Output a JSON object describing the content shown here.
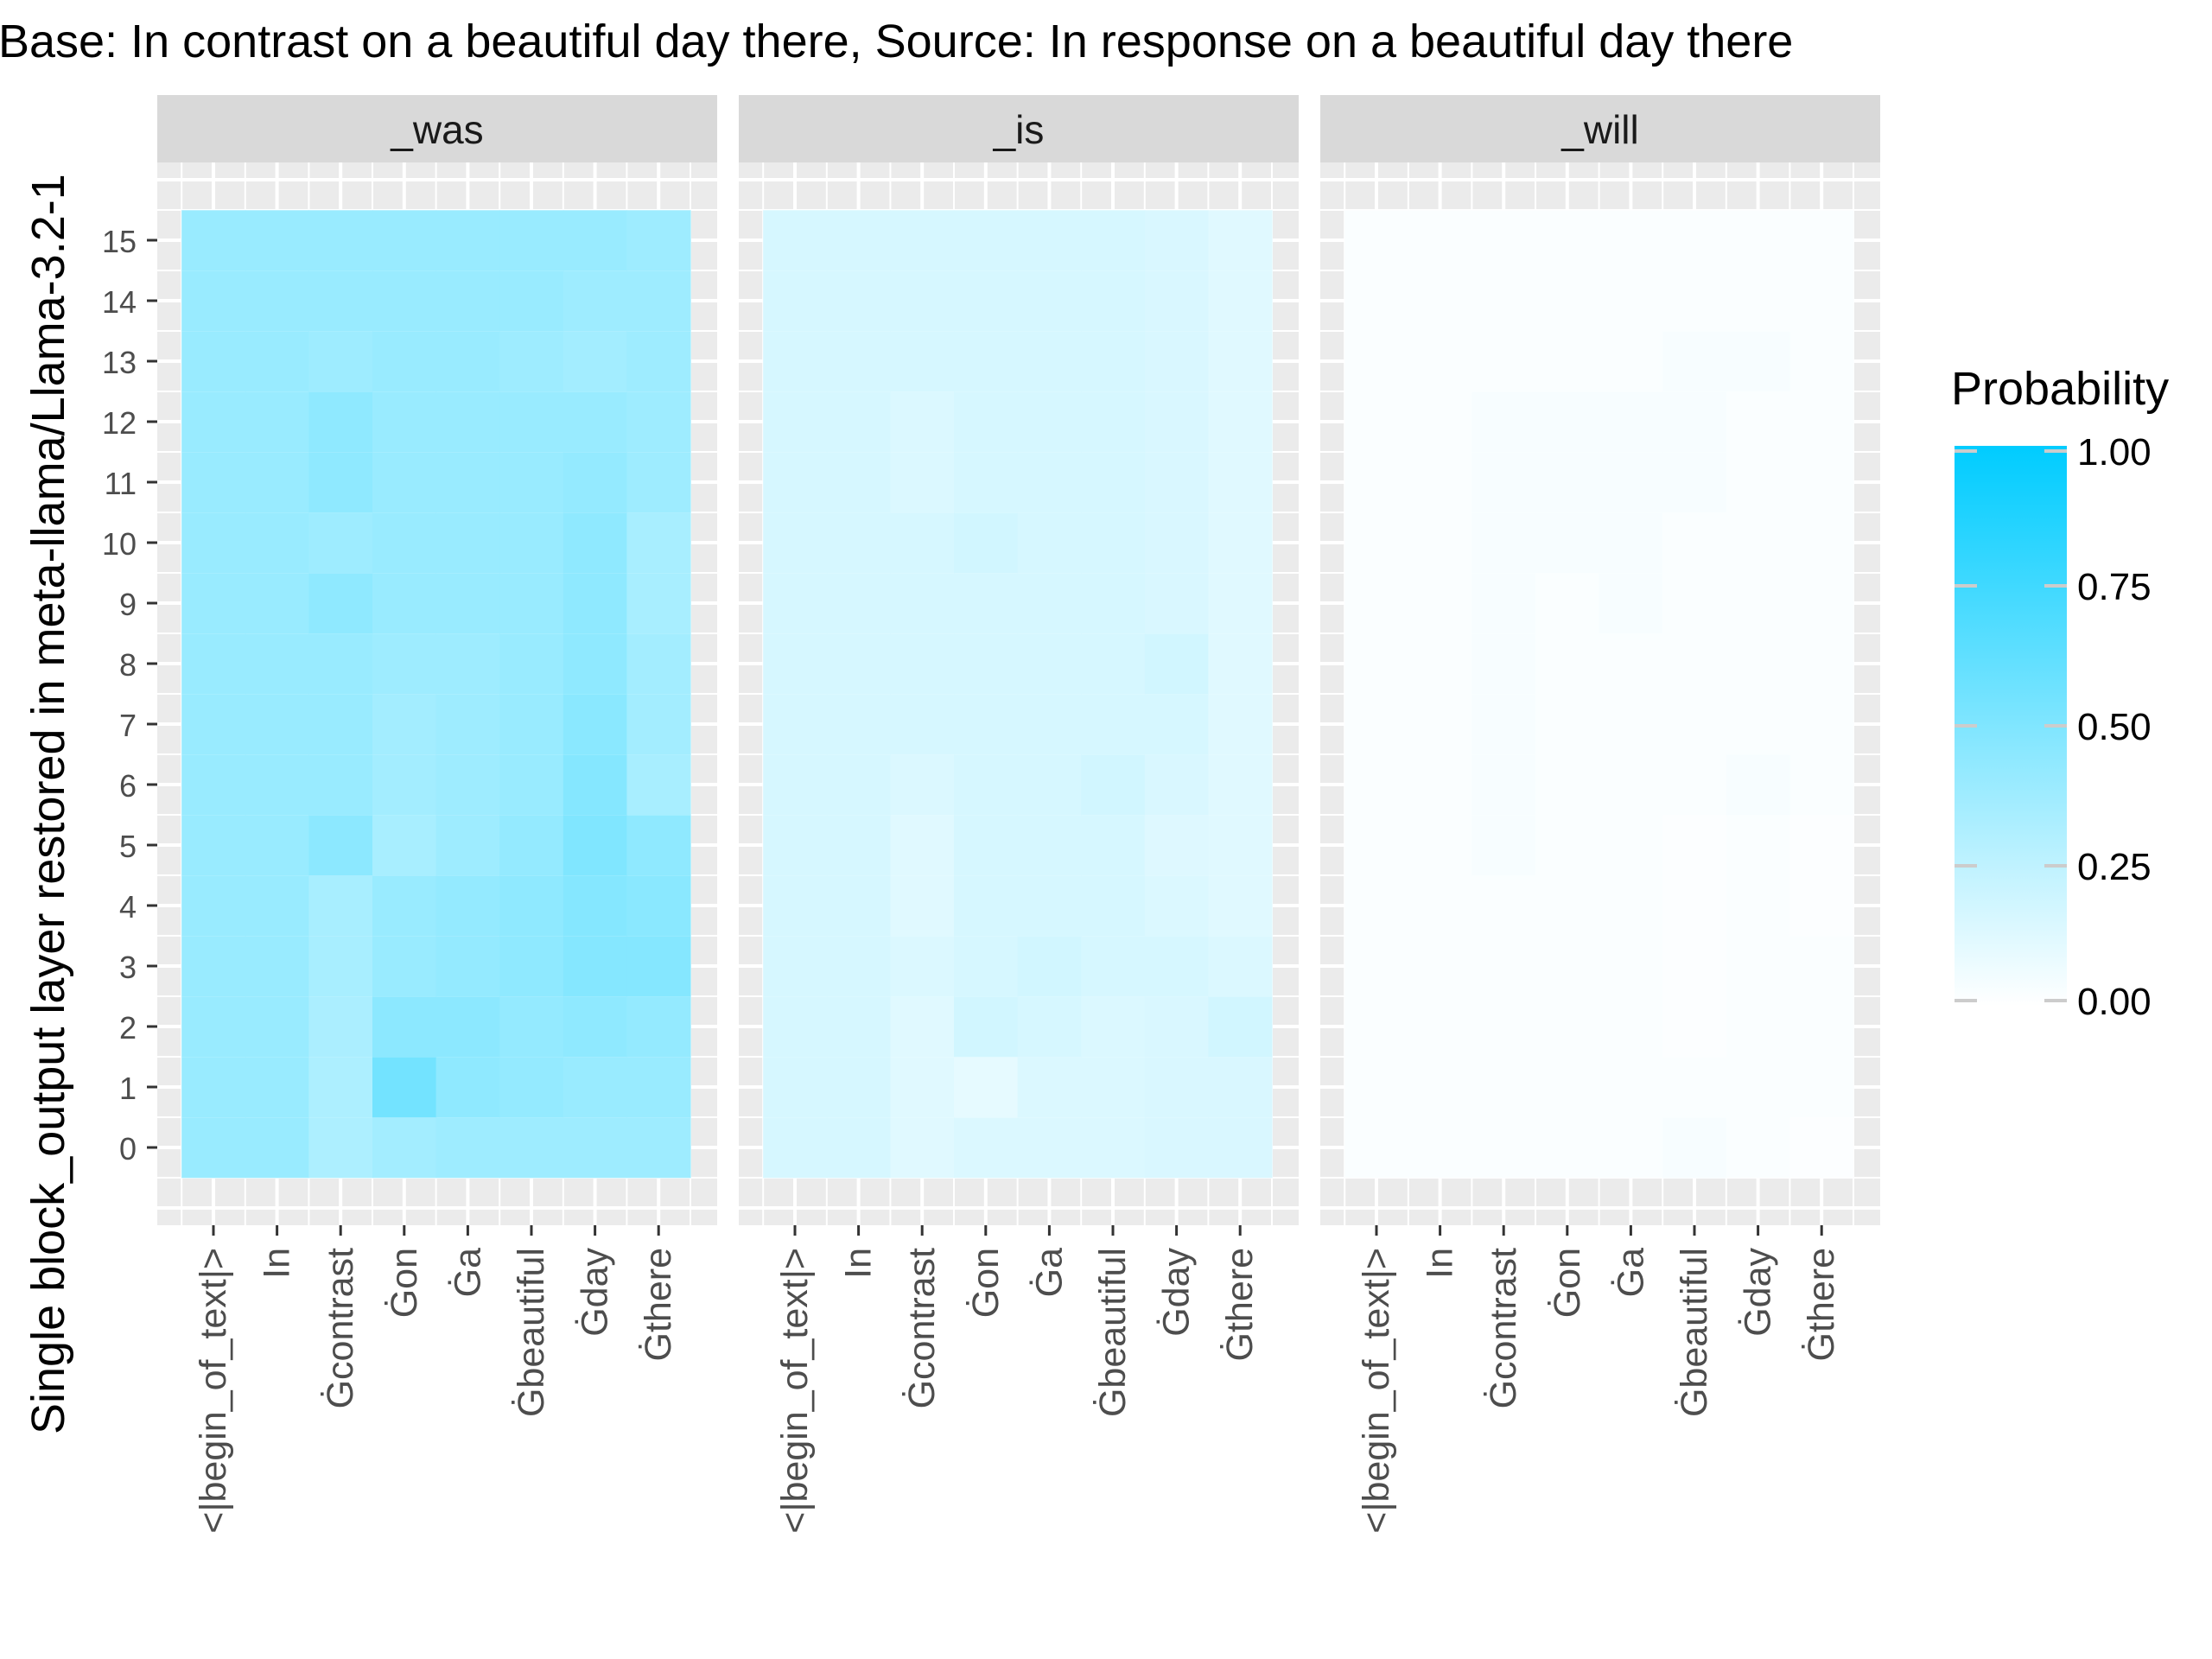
{
  "chart_data": {
    "type": "heatmap",
    "title": "Base: In contrast on a beautiful day there, Source: In response on a beautiful day there",
    "ylabel": "Single block_output layer restored in meta-llama/Llama-3.2-1",
    "xlabel": "",
    "x_categories": [
      "<|begin_of_text|>",
      "In",
      "Ġcontrast",
      "Ġon",
      "Ġa",
      "Ġbeautiful",
      "Ġday",
      "Ġthere"
    ],
    "y_categories": [
      0,
      1,
      2,
      3,
      4,
      5,
      6,
      7,
      8,
      9,
      10,
      11,
      12,
      13,
      14,
      15
    ],
    "facets": [
      {
        "name": "_was",
        "values": [
          [
            0.4,
            0.4,
            0.32,
            0.36,
            0.38,
            0.38,
            0.38,
            0.38
          ],
          [
            0.4,
            0.4,
            0.32,
            0.55,
            0.44,
            0.42,
            0.4,
            0.4
          ],
          [
            0.4,
            0.4,
            0.33,
            0.45,
            0.45,
            0.42,
            0.44,
            0.42
          ],
          [
            0.4,
            0.4,
            0.34,
            0.4,
            0.42,
            0.44,
            0.48,
            0.48
          ],
          [
            0.4,
            0.4,
            0.34,
            0.4,
            0.42,
            0.44,
            0.48,
            0.46
          ],
          [
            0.4,
            0.4,
            0.45,
            0.34,
            0.38,
            0.42,
            0.5,
            0.44
          ],
          [
            0.4,
            0.4,
            0.4,
            0.36,
            0.38,
            0.4,
            0.48,
            0.34
          ],
          [
            0.4,
            0.4,
            0.4,
            0.36,
            0.38,
            0.4,
            0.46,
            0.36
          ],
          [
            0.4,
            0.4,
            0.4,
            0.38,
            0.38,
            0.4,
            0.44,
            0.36
          ],
          [
            0.4,
            0.4,
            0.44,
            0.4,
            0.4,
            0.4,
            0.44,
            0.34
          ],
          [
            0.4,
            0.4,
            0.38,
            0.4,
            0.4,
            0.4,
            0.44,
            0.34
          ],
          [
            0.4,
            0.4,
            0.44,
            0.4,
            0.4,
            0.4,
            0.42,
            0.38
          ],
          [
            0.4,
            0.4,
            0.44,
            0.4,
            0.4,
            0.4,
            0.4,
            0.38
          ],
          [
            0.4,
            0.4,
            0.38,
            0.4,
            0.4,
            0.38,
            0.36,
            0.38
          ],
          [
            0.4,
            0.4,
            0.4,
            0.4,
            0.4,
            0.4,
            0.38,
            0.38
          ],
          [
            0.4,
            0.4,
            0.4,
            0.4,
            0.4,
            0.4,
            0.4,
            0.38
          ]
        ]
      },
      {
        "name": "_is",
        "values": [
          [
            0.16,
            0.16,
            0.12,
            0.14,
            0.14,
            0.14,
            0.15,
            0.15
          ],
          [
            0.16,
            0.16,
            0.12,
            0.1,
            0.14,
            0.14,
            0.15,
            0.15
          ],
          [
            0.16,
            0.16,
            0.12,
            0.18,
            0.16,
            0.14,
            0.15,
            0.18
          ],
          [
            0.16,
            0.16,
            0.14,
            0.16,
            0.18,
            0.16,
            0.16,
            0.14
          ],
          [
            0.16,
            0.16,
            0.12,
            0.16,
            0.16,
            0.16,
            0.14,
            0.12
          ],
          [
            0.16,
            0.16,
            0.12,
            0.16,
            0.16,
            0.16,
            0.13,
            0.12
          ],
          [
            0.16,
            0.16,
            0.14,
            0.16,
            0.16,
            0.18,
            0.15,
            0.12
          ],
          [
            0.16,
            0.16,
            0.16,
            0.16,
            0.16,
            0.16,
            0.16,
            0.12
          ],
          [
            0.16,
            0.16,
            0.16,
            0.16,
            0.16,
            0.16,
            0.18,
            0.12
          ],
          [
            0.16,
            0.16,
            0.16,
            0.16,
            0.16,
            0.16,
            0.15,
            0.12
          ],
          [
            0.16,
            0.16,
            0.16,
            0.18,
            0.16,
            0.16,
            0.15,
            0.12
          ],
          [
            0.16,
            0.16,
            0.14,
            0.16,
            0.16,
            0.16,
            0.15,
            0.12
          ],
          [
            0.16,
            0.16,
            0.14,
            0.16,
            0.16,
            0.16,
            0.15,
            0.12
          ],
          [
            0.16,
            0.16,
            0.16,
            0.16,
            0.16,
            0.16,
            0.15,
            0.12
          ],
          [
            0.16,
            0.16,
            0.16,
            0.16,
            0.16,
            0.16,
            0.15,
            0.12
          ],
          [
            0.16,
            0.16,
            0.16,
            0.16,
            0.16,
            0.16,
            0.15,
            0.12
          ]
        ]
      },
      {
        "name": "_will",
        "values": [
          [
            0.02,
            0.02,
            0.02,
            0.02,
            0.02,
            0.03,
            0.02,
            0.01
          ],
          [
            0.02,
            0.02,
            0.02,
            0.02,
            0.02,
            0.02,
            0.02,
            0.02
          ],
          [
            0.02,
            0.02,
            0.02,
            0.02,
            0.02,
            0.01,
            0.02,
            0.02
          ],
          [
            0.02,
            0.02,
            0.02,
            0.02,
            0.02,
            0.01,
            0.02,
            0.02
          ],
          [
            0.02,
            0.02,
            0.02,
            0.02,
            0.02,
            0.01,
            0.02,
            0.01
          ],
          [
            0.02,
            0.02,
            0.03,
            0.02,
            0.02,
            0.01,
            0.02,
            0.01
          ],
          [
            0.02,
            0.02,
            0.03,
            0.02,
            0.02,
            0.02,
            0.03,
            0.02
          ],
          [
            0.02,
            0.02,
            0.03,
            0.02,
            0.02,
            0.02,
            0.02,
            0.02
          ],
          [
            0.02,
            0.02,
            0.03,
            0.02,
            0.02,
            0.02,
            0.02,
            0.02
          ],
          [
            0.02,
            0.02,
            0.03,
            0.02,
            0.03,
            0.02,
            0.02,
            0.02
          ],
          [
            0.02,
            0.02,
            0.03,
            0.03,
            0.03,
            0.02,
            0.02,
            0.02
          ],
          [
            0.02,
            0.02,
            0.03,
            0.03,
            0.03,
            0.03,
            0.02,
            0.02
          ],
          [
            0.02,
            0.02,
            0.03,
            0.03,
            0.03,
            0.03,
            0.02,
            0.02
          ],
          [
            0.02,
            0.02,
            0.02,
            0.02,
            0.02,
            0.03,
            0.03,
            0.02
          ],
          [
            0.02,
            0.02,
            0.02,
            0.02,
            0.02,
            0.02,
            0.02,
            0.02
          ],
          [
            0.02,
            0.02,
            0.02,
            0.02,
            0.02,
            0.02,
            0.02,
            0.02
          ]
        ]
      }
    ],
    "legend": {
      "title": "Probability",
      "position": "right",
      "breaks": [
        0,
        0.25,
        0.5,
        0.75,
        1
      ],
      "labels": [
        "0.00",
        "0.25",
        "0.50",
        "0.75",
        "1.00"
      ],
      "color_low": "#ffffff",
      "color_high": "#00ccff"
    },
    "colors": {
      "panel_background": "#ebebeb",
      "grid": "#ffffff",
      "strip_background": "#d9d9d9"
    }
  }
}
